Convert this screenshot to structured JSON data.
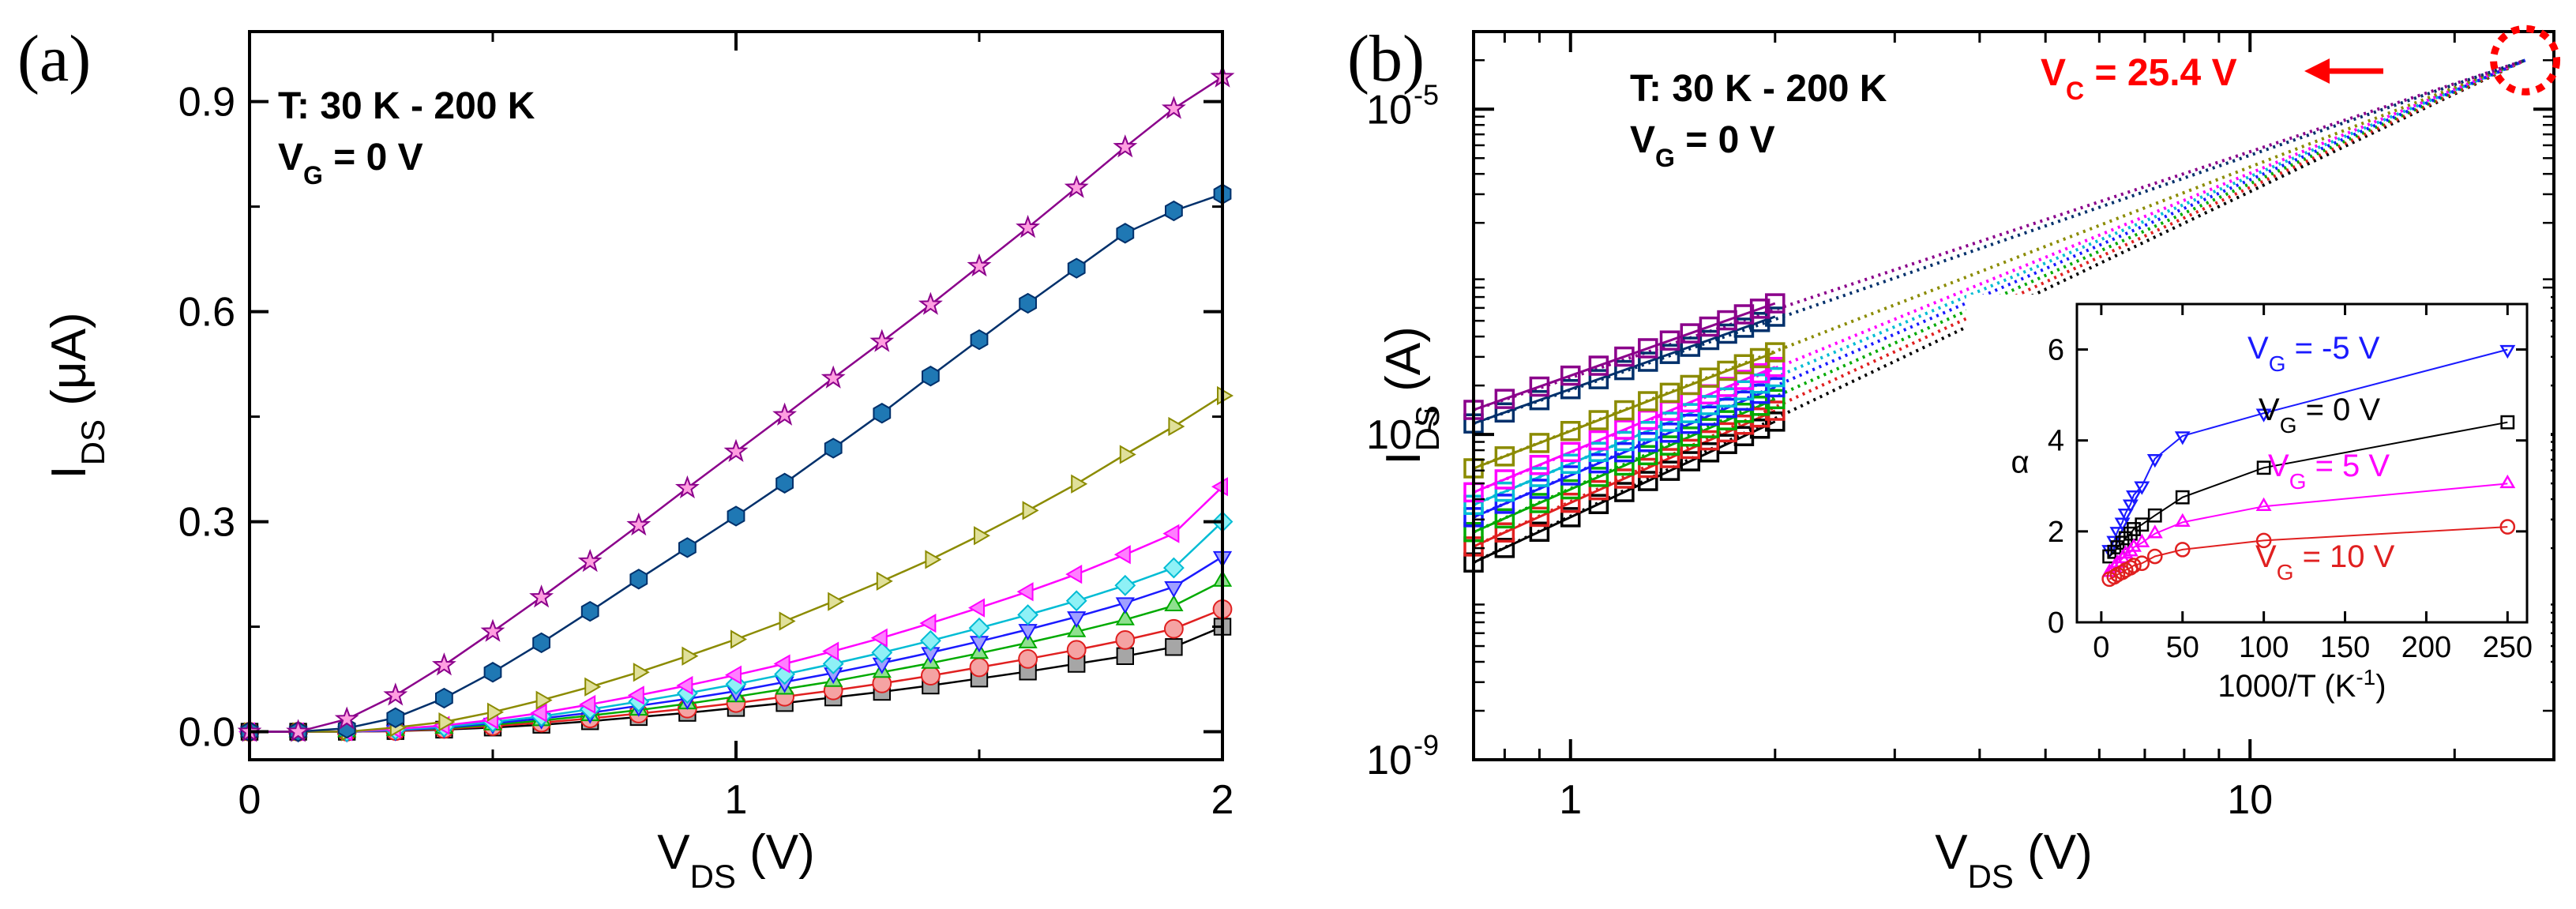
{
  "chart_data": [
    {
      "type": "line",
      "panel_label": "(a)",
      "xlabel": "V",
      "xlabel_sub": "DS",
      "xlabel_unit": " (V)",
      "ylabel": "I",
      "ylabel_sub": "DS",
      "ylabel_unit": " (μA)",
      "xlim": [
        0,
        2
      ],
      "ylim": [
        -0.04,
        1.0
      ],
      "xticks": [
        0,
        1,
        2
      ],
      "xtick_labels": [
        "0",
        "1",
        "2"
      ],
      "yticks": [
        0.0,
        0.3,
        0.6,
        0.9
      ],
      "ytick_labels": [
        "0.0",
        "0.3",
        "0.6",
        "0.9"
      ],
      "annotation_line1": "T: 30 K - 200 K",
      "annotation_line2_main": "V",
      "annotation_line2_sub": "G",
      "annotation_line2_rest": " = 0 V",
      "x": [
        0,
        0.1,
        0.2,
        0.3,
        0.4,
        0.5,
        0.6,
        0.7,
        0.8,
        0.9,
        1.0,
        1.1,
        1.2,
        1.3,
        1.4,
        1.5,
        1.6,
        1.7,
        1.8,
        1.9,
        2.0
      ],
      "series": [
        {
          "name": "s1",
          "marker": "square",
          "color": "#000000",
          "fill": "#a6a6a6",
          "values": [
            0,
            0,
            0,
            0.001,
            0.003,
            0.006,
            0.01,
            0.015,
            0.021,
            0.027,
            0.034,
            0.041,
            0.049,
            0.057,
            0.066,
            0.076,
            0.086,
            0.097,
            0.108,
            0.121,
            0.15
          ]
        },
        {
          "name": "s2",
          "marker": "circle",
          "color": "#e02020",
          "fill": "#f5a3a3",
          "values": [
            0,
            0,
            0,
            0.001,
            0.004,
            0.008,
            0.013,
            0.019,
            0.026,
            0.033,
            0.041,
            0.05,
            0.059,
            0.069,
            0.08,
            0.092,
            0.104,
            0.117,
            0.131,
            0.147,
            0.175
          ]
        },
        {
          "name": "s3",
          "marker": "triangle-up",
          "color": "#00aa00",
          "fill": "#8fe08f",
          "values": [
            0,
            0,
            0,
            0.002,
            0.005,
            0.01,
            0.016,
            0.023,
            0.031,
            0.04,
            0.05,
            0.061,
            0.072,
            0.085,
            0.098,
            0.112,
            0.127,
            0.143,
            0.16,
            0.18,
            0.215
          ]
        },
        {
          "name": "s4",
          "marker": "triangle-down",
          "color": "#1a1aff",
          "fill": "#a0a0ff",
          "values": [
            0,
            0,
            0,
            0.002,
            0.006,
            0.012,
            0.019,
            0.027,
            0.037,
            0.047,
            0.058,
            0.071,
            0.084,
            0.098,
            0.113,
            0.129,
            0.146,
            0.164,
            0.184,
            0.207,
            0.25
          ]
        },
        {
          "name": "s5",
          "marker": "diamond",
          "color": "#00bcd4",
          "fill": "#8ef1f6",
          "values": [
            0,
            0,
            0,
            0.003,
            0.007,
            0.014,
            0.022,
            0.032,
            0.043,
            0.055,
            0.068,
            0.082,
            0.097,
            0.113,
            0.13,
            0.148,
            0.167,
            0.187,
            0.209,
            0.234,
            0.3
          ]
        },
        {
          "name": "s6",
          "marker": "triangle-left",
          "color": "#ff00ff",
          "fill": "#ff7fff",
          "values": [
            0,
            0,
            0,
            0.004,
            0.009,
            0.017,
            0.027,
            0.039,
            0.052,
            0.066,
            0.081,
            0.097,
            0.115,
            0.134,
            0.155,
            0.177,
            0.2,
            0.225,
            0.253,
            0.283,
            0.35
          ]
        },
        {
          "name": "s7",
          "marker": "triangle-right",
          "color": "#8b8b00",
          "fill": "#e0e09a",
          "values": [
            0,
            0,
            0,
            0.006,
            0.014,
            0.028,
            0.045,
            0.064,
            0.085,
            0.108,
            0.132,
            0.158,
            0.186,
            0.215,
            0.246,
            0.28,
            0.316,
            0.354,
            0.396,
            0.436,
            0.48
          ]
        },
        {
          "name": "s8",
          "marker": "hexagon",
          "color": "#00306b",
          "fill": "#1f78b4",
          "values": [
            0,
            0,
            0.005,
            0.02,
            0.048,
            0.085,
            0.127,
            0.172,
            0.218,
            0.263,
            0.308,
            0.355,
            0.405,
            0.455,
            0.508,
            0.56,
            0.612,
            0.662,
            0.712,
            0.744,
            0.768
          ]
        },
        {
          "name": "s9",
          "marker": "star",
          "color": "#8b008b",
          "fill": "#ff9ee0",
          "values": [
            0,
            0,
            0.018,
            0.052,
            0.095,
            0.143,
            0.192,
            0.243,
            0.295,
            0.348,
            0.4,
            0.452,
            0.505,
            0.557,
            0.61,
            0.665,
            0.72,
            0.777,
            0.835,
            0.89,
            0.935
          ]
        }
      ]
    },
    {
      "type": "line",
      "panel_label": "(b)",
      "xscale": "log",
      "yscale": "log",
      "xlabel": "V",
      "xlabel_sub": "DS",
      "xlabel_unit": " (V)",
      "ylabel": "I",
      "ylabel_sub": "DS",
      "ylabel_unit": " (A)",
      "xlim": [
        0.72,
        28
      ],
      "ylim": [
        1e-09,
        3e-05
      ],
      "xticks": [
        1,
        10
      ],
      "xtick_labels": [
        "1",
        "10"
      ],
      "yticks": [
        1e-09,
        1e-07,
        1e-05
      ],
      "ytick_base": "10",
      "ytick_exponents": [
        "-9",
        "-7",
        "-5"
      ],
      "annotation_line1": "T: 30 K - 200 K",
      "annotation_line2_main": "V",
      "annotation_line2_sub": "G",
      "annotation_line2_rest": " = 0 V",
      "vc_label_main": "V",
      "vc_label_sub": "C",
      "vc_label_rest": " = 25.4 V",
      "vc_color": "#ff0000",
      "convergence_point": {
        "x": 25.4,
        "y": 2e-05
      },
      "data_x": [
        0.72,
        0.8,
        0.9,
        1.0,
        1.1,
        1.2,
        1.3,
        1.4,
        1.5,
        1.6,
        1.7,
        1.8,
        1.9,
        2.0
      ],
      "series": [
        {
          "name": "30 K",
          "color": "#000000",
          "i_at_1V": 3.1e-08,
          "i_at_2V": 1.2e-07
        },
        {
          "name": "s2",
          "color": "#e02020",
          "i_at_1V": 3.8e-08,
          "i_at_2V": 1.4e-07
        },
        {
          "name": "s3",
          "color": "#00aa00",
          "i_at_1V": 4.6e-08,
          "i_at_2V": 1.65e-07
        },
        {
          "name": "s4",
          "color": "#1a1aff",
          "i_at_1V": 5.6e-08,
          "i_at_2V": 1.95e-07
        },
        {
          "name": "s5",
          "color": "#00bcd4",
          "i_at_1V": 6.6e-08,
          "i_at_2V": 2.25e-07
        },
        {
          "name": "s6",
          "color": "#ff00ff",
          "i_at_1V": 7.8e-08,
          "i_at_2V": 2.6e-07
        },
        {
          "name": "s7",
          "color": "#8b8b00",
          "i_at_1V": 1.05e-07,
          "i_at_2V": 3.2e-07
        },
        {
          "name": "s8",
          "color": "#00306b",
          "i_at_1V": 1.9e-07,
          "i_at_2V": 5.3e-07
        },
        {
          "name": "200 K",
          "color": "#8b008b",
          "i_at_1V": 2.3e-07,
          "i_at_2V": 6.4e-07
        }
      ],
      "inset": {
        "xlabel": "1000/T (K",
        "xlabel_sup": "-1",
        "xlabel_end": ")",
        "ylabel": "α",
        "xlim": [
          -15,
          262
        ],
        "ylim": [
          0,
          7
        ],
        "xticks": [
          0,
          50,
          100,
          150,
          200,
          250
        ],
        "xtick_labels": [
          "0",
          "50",
          "100",
          "150",
          "200",
          "250"
        ],
        "yticks": [
          0,
          2,
          4,
          6
        ],
        "ytick_labels": [
          "0",
          "2",
          "4",
          "6"
        ],
        "series": [
          {
            "name": "VG = -5 V",
            "label_main": "V",
            "label_sub": "G",
            "label_rest": " = -5 V",
            "color": "#1a1aff",
            "marker": "triangle-down",
            "x": [
              5,
              8,
              10,
              13,
              15,
              18,
              20,
              25,
              33,
              50,
              100,
              250
            ],
            "y": [
              1.6,
              1.8,
              2.0,
              2.2,
              2.4,
              2.6,
              2.8,
              3.0,
              3.6,
              4.1,
              4.6,
              6.0
            ]
          },
          {
            "name": "VG = 0 V",
            "label_main": "V",
            "label_sub": "G",
            "label_rest": " = 0 V",
            "color": "#000000",
            "marker": "square",
            "x": [
              5,
              8,
              10,
              13,
              15,
              18,
              20,
              25,
              33,
              50,
              100,
              250
            ],
            "y": [
              1.45,
              1.55,
              1.65,
              1.75,
              1.85,
              1.95,
              2.05,
              2.15,
              2.35,
              2.75,
              3.4,
              4.4
            ]
          },
          {
            "name": "VG = 5 V",
            "label_main": "V",
            "label_sub": "G",
            "label_rest": " = 5 V",
            "color": "#ff00ff",
            "marker": "triangle-up",
            "x": [
              5,
              8,
              10,
              13,
              15,
              18,
              20,
              25,
              33,
              50,
              100,
              250
            ],
            "y": [
              1.1,
              1.2,
              1.3,
              1.4,
              1.5,
              1.55,
              1.65,
              1.75,
              1.95,
              2.2,
              2.55,
              3.05
            ]
          },
          {
            "name": "VG = 10 V",
            "label_main": "V",
            "label_sub": "G",
            "label_rest": " = 10 V",
            "color": "#e02020",
            "marker": "circle",
            "x": [
              5,
              8,
              10,
              13,
              15,
              18,
              20,
              25,
              33,
              50,
              100,
              250
            ],
            "y": [
              0.95,
              1.0,
              1.05,
              1.1,
              1.15,
              1.2,
              1.25,
              1.3,
              1.45,
              1.6,
              1.8,
              2.1
            ]
          }
        ]
      }
    }
  ]
}
